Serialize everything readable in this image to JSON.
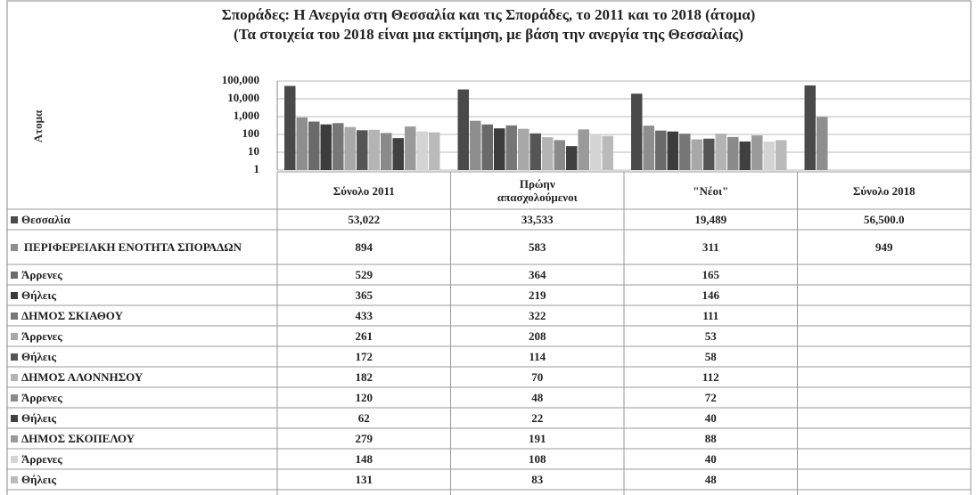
{
  "chart_data": {
    "type": "bar",
    "title": "Σποράδες: Η Ανεργία στη Θεσσαλία και τις Σποράδες, το 2011 και το 2018 (άτομα)",
    "subtitle": "(Τα στοιχεία του 2018 είναι μια εκτίμηση, με βάση την ανεργία της Θεσσαλίας)",
    "y_label": "Ατομα",
    "log_scale": true,
    "grid": true,
    "ylim": [
      1,
      100000
    ],
    "yticks": [
      1,
      10,
      100,
      {
        "value": 1000,
        "label": "1,000"
      },
      {
        "value": 10000,
        "label": "10,000"
      },
      {
        "value": 100000,
        "label": "100,000"
      }
    ],
    "categories": [
      "Σύνολο 2011",
      "Πρώην απασχολούμενοι",
      "\"Νέοι\"",
      "Σύνολο 2018"
    ],
    "series": [
      {
        "name": "Θεσσαλία",
        "color": "#4a4a4a",
        "values": [
          53022,
          33533,
          19489,
          56500
        ],
        "value_labels": [
          "53,022",
          "33,533",
          "19,489",
          "56,500.0"
        ]
      },
      {
        "name": "ΠΕΡΙΦΕΡΕΙΑΚΗ ΕΝΟΤΗΤΑ ΣΠΟΡΑΔΩΝ",
        "color": "#8e8e8e",
        "values": [
          894,
          583,
          311,
          949
        ]
      },
      {
        "name": "Άρρενες",
        "color": "#6a6a6a",
        "values": [
          529,
          364,
          165,
          null
        ]
      },
      {
        "name": "Θήλεις",
        "color": "#3c3c3c",
        "values": [
          365,
          219,
          146,
          null
        ]
      },
      {
        "name": "ΔΗΜΟΣ ΣΚΙΑΘΟΥ",
        "color": "#777777",
        "values": [
          433,
          322,
          111,
          null
        ]
      },
      {
        "name": "Άρρενες",
        "color": "#a8a8a8",
        "values": [
          261,
          208,
          53,
          null
        ]
      },
      {
        "name": "Θήλεις",
        "color": "#555555",
        "values": [
          172,
          114,
          58,
          null
        ]
      },
      {
        "name": "ΔΗΜΟΣ ΑΛΟΝΝΗΣΟΥ",
        "color": "#b4b4b4",
        "values": [
          182,
          70,
          112,
          null
        ]
      },
      {
        "name": "Άρρενες",
        "color": "#8a8a8a",
        "values": [
          120,
          48,
          72,
          null
        ]
      },
      {
        "name": "Θήλεις",
        "color": "#404040",
        "values": [
          62,
          22,
          40,
          null
        ]
      },
      {
        "name": "ΔΗΜΟΣ ΣΚΟΠΕΛΟΥ",
        "color": "#9a9a9a",
        "values": [
          279,
          191,
          88,
          null
        ]
      },
      {
        "name": "Άρρενες",
        "color": "#d4d4d4",
        "values": [
          148,
          108,
          40,
          null
        ]
      },
      {
        "name": "Θήλεις",
        "color": "#bababa",
        "values": [
          131,
          83,
          48,
          null
        ]
      }
    ]
  }
}
